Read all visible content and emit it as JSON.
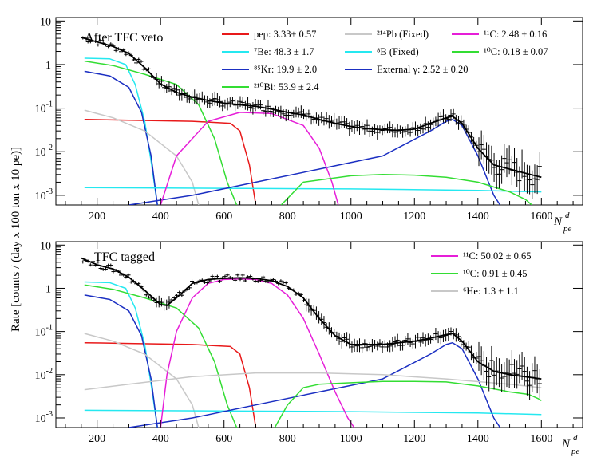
{
  "figure": {
    "ylabel": "Rate [counts / (day x 100 ton x 10 pe)]",
    "xlabel_main": "N",
    "xlabel_sup": "d",
    "xlabel_sub": "pe"
  },
  "chart_data": [
    {
      "type": "line",
      "title": "After TFC veto",
      "xlim": [
        70,
        1730
      ],
      "ylim": [
        0.0006,
        12
      ],
      "yscale": "log",
      "x_ticks": [
        200,
        400,
        600,
        800,
        1000,
        1200,
        1400,
        1600
      ],
      "y_ticks": [
        {
          "value": 0.001,
          "base": "10",
          "exp": "-3"
        },
        {
          "value": 0.01,
          "base": "10",
          "exp": "-2"
        },
        {
          "value": 0.1,
          "base": "10",
          "exp": "-1"
        },
        {
          "value": 1,
          "base": "1",
          "exp": ""
        },
        {
          "value": 10,
          "base": "10",
          "exp": ""
        }
      ],
      "legend": [
        {
          "color": "#e8191a",
          "text": "pep: 3.33± 0.57"
        },
        {
          "color": "#25e8f0",
          "text": "⁷Be: 48.3 ±  1.7"
        },
        {
          "color": "#1b2fc2",
          "text": "⁸⁵Kr: 19.9 ±  2.0"
        },
        {
          "color": "#33dd33",
          "text": "²¹⁰Bi: 53.9 ±  2.4"
        },
        {
          "color": "#c8c8c8",
          "text": "²¹⁴Pb (Fixed)"
        },
        {
          "color": "#25e8f0",
          "text": "⁸B (Fixed)"
        },
        {
          "color": "#1b2fc2",
          "text": "External γ: 2.52 ± 0.20"
        },
        {
          "color": "#e61ed8",
          "text": "¹¹C: 2.48 ±  0.16"
        },
        {
          "color": "#33dd33",
          "text": "¹⁰C: 0.18 ± 0.07"
        }
      ],
      "series": [
        {
          "name": "Total fit",
          "color": "#000000",
          "x": [
            150,
            200,
            250,
            300,
            350,
            400,
            450,
            500,
            550,
            600,
            650,
            700,
            750,
            800,
            850,
            900,
            950,
            1000,
            1050,
            1100,
            1150,
            1200,
            1250,
            1300,
            1320,
            1350,
            1400,
            1450,
            1500,
            1550,
            1600
          ],
          "y": [
            4.2,
            3.3,
            2.6,
            1.8,
            0.85,
            0.36,
            0.23,
            0.18,
            0.15,
            0.13,
            0.12,
            0.11,
            0.095,
            0.08,
            0.07,
            0.055,
            0.045,
            0.038,
            0.034,
            0.032,
            0.031,
            0.033,
            0.045,
            0.06,
            0.065,
            0.045,
            0.012,
            0.005,
            0.004,
            0.0032,
            0.0026
          ]
        },
        {
          "name": "pep",
          "color": "#e8191a",
          "x": [
            160,
            300,
            500,
            620,
            650,
            680,
            700
          ],
          "y": [
            0.055,
            0.053,
            0.05,
            0.045,
            0.03,
            0.005,
            0.0006
          ]
        },
        {
          "name": "7Be",
          "color": "#25e8f0",
          "x": [
            160,
            240,
            290,
            320,
            350,
            370,
            390
          ],
          "y": [
            1.4,
            1.35,
            1.0,
            0.35,
            0.05,
            0.006,
            0.0006
          ]
        },
        {
          "name": "85Kr",
          "color": "#1b2fc2",
          "x": [
            160,
            240,
            300,
            340,
            370,
            390
          ],
          "y": [
            0.7,
            0.55,
            0.3,
            0.08,
            0.008,
            0.0006
          ]
        },
        {
          "name": "210Bi",
          "color": "#33dd33",
          "x": [
            160,
            250,
            350,
            450,
            520,
            570,
            610,
            640
          ],
          "y": [
            1.2,
            0.95,
            0.6,
            0.35,
            0.12,
            0.02,
            0.002,
            0.0006
          ]
        },
        {
          "name": "214Pb",
          "color": "#c8c8c8",
          "x": [
            160,
            250,
            350,
            450,
            500,
            520
          ],
          "y": [
            0.09,
            0.06,
            0.03,
            0.008,
            0.002,
            0.0006
          ]
        },
        {
          "name": "8B",
          "color": "#25e8f0",
          "x": [
            160,
            600,
            1000,
            1400,
            1600
          ],
          "y": [
            0.0015,
            0.00145,
            0.0014,
            0.0013,
            0.0012
          ]
        },
        {
          "name": "External gamma",
          "color": "#1b2fc2",
          "x": [
            300,
            500,
            700,
            900,
            1100,
            1250,
            1300,
            1320,
            1350,
            1400,
            1450,
            1470
          ],
          "y": [
            0.0006,
            0.001,
            0.002,
            0.004,
            0.008,
            0.03,
            0.05,
            0.055,
            0.04,
            0.008,
            0.001,
            0.0006
          ]
        },
        {
          "name": "11C",
          "color": "#e61ed8",
          "x": [
            400,
            450,
            550,
            650,
            750,
            850,
            900,
            940,
            960
          ],
          "y": [
            0.0006,
            0.008,
            0.05,
            0.08,
            0.075,
            0.04,
            0.012,
            0.002,
            0.0006
          ]
        },
        {
          "name": "10C",
          "color": "#33dd33",
          "x": [
            780,
            850,
            1000,
            1100,
            1200,
            1300,
            1400,
            1500,
            1550,
            1570
          ],
          "y": [
            0.0006,
            0.002,
            0.0028,
            0.003,
            0.0029,
            0.0026,
            0.002,
            0.0012,
            0.0008,
            0.0006
          ]
        }
      ]
    },
    {
      "type": "line",
      "title": "TFC tagged",
      "xlim": [
        70,
        1730
      ],
      "ylim": [
        0.0006,
        12
      ],
      "yscale": "log",
      "x_ticks": [
        200,
        400,
        600,
        800,
        1000,
        1200,
        1400,
        1600
      ],
      "y_ticks": [
        {
          "value": 0.001,
          "base": "10",
          "exp": "-3"
        },
        {
          "value": 0.01,
          "base": "10",
          "exp": "-2"
        },
        {
          "value": 0.1,
          "base": "10",
          "exp": "-1"
        },
        {
          "value": 1,
          "base": "1",
          "exp": ""
        },
        {
          "value": 10,
          "base": "10",
          "exp": ""
        }
      ],
      "legend": [
        {
          "color": "#e61ed8",
          "text": "¹¹C: 50.02 ±  0.65"
        },
        {
          "color": "#33dd33",
          "text": "¹⁰C: 0.91 ± 0.45"
        },
        {
          "color": "#c8c8c8",
          "text": "⁶He: 1.3 ± 1.1"
        }
      ],
      "series": [
        {
          "name": "Total fit",
          "color": "#000000",
          "x": [
            150,
            200,
            250,
            300,
            350,
            400,
            420,
            450,
            500,
            550,
            600,
            650,
            700,
            750,
            800,
            850,
            900,
            950,
            1000,
            1050,
            1100,
            1150,
            1200,
            1250,
            1300,
            1320,
            1350,
            1400,
            1450,
            1500,
            1550,
            1600
          ],
          "y": [
            5.0,
            3.5,
            2.8,
            1.8,
            0.9,
            0.42,
            0.4,
            0.6,
            1.3,
            1.6,
            1.7,
            1.75,
            1.7,
            1.5,
            1.1,
            0.6,
            0.2,
            0.08,
            0.05,
            0.05,
            0.05,
            0.055,
            0.06,
            0.07,
            0.085,
            0.09,
            0.06,
            0.02,
            0.012,
            0.01,
            0.009,
            0.008
          ]
        },
        {
          "name": "pep",
          "color": "#e8191a",
          "x": [
            160,
            300,
            500,
            620,
            650,
            680,
            700
          ],
          "y": [
            0.055,
            0.053,
            0.05,
            0.045,
            0.03,
            0.005,
            0.0006
          ]
        },
        {
          "name": "7Be",
          "color": "#25e8f0",
          "x": [
            160,
            240,
            290,
            320,
            350,
            370,
            390
          ],
          "y": [
            1.4,
            1.35,
            1.0,
            0.35,
            0.05,
            0.006,
            0.0006
          ]
        },
        {
          "name": "85Kr",
          "color": "#1b2fc2",
          "x": [
            160,
            240,
            300,
            340,
            370,
            390
          ],
          "y": [
            0.7,
            0.55,
            0.3,
            0.08,
            0.008,
            0.0006
          ]
        },
        {
          "name": "210Bi",
          "color": "#33dd33",
          "x": [
            160,
            250,
            350,
            450,
            520,
            570,
            610,
            640
          ],
          "y": [
            1.2,
            0.95,
            0.6,
            0.35,
            0.12,
            0.02,
            0.002,
            0.0006
          ]
        },
        {
          "name": "214Pb",
          "color": "#c8c8c8",
          "x": [
            160,
            250,
            350,
            450,
            500,
            520
          ],
          "y": [
            0.09,
            0.06,
            0.03,
            0.008,
            0.002,
            0.0006
          ]
        },
        {
          "name": "8B",
          "color": "#25e8f0",
          "x": [
            160,
            600,
            1000,
            1400,
            1600
          ],
          "y": [
            0.0015,
            0.00145,
            0.0014,
            0.0013,
            0.0012
          ]
        },
        {
          "name": "External gamma",
          "color": "#1b2fc2",
          "x": [
            300,
            500,
            700,
            900,
            1100,
            1250,
            1300,
            1320,
            1350,
            1400,
            1450,
            1470
          ],
          "y": [
            0.0006,
            0.001,
            0.002,
            0.004,
            0.008,
            0.03,
            0.05,
            0.055,
            0.04,
            0.008,
            0.001,
            0.0006
          ]
        },
        {
          "name": "11C",
          "color": "#e61ed8",
          "x": [
            400,
            420,
            450,
            500,
            550,
            600,
            650,
            700,
            750,
            800,
            850,
            900,
            950,
            990,
            1010
          ],
          "y": [
            0.0006,
            0.01,
            0.1,
            0.6,
            1.3,
            1.6,
            1.65,
            1.6,
            1.3,
            0.7,
            0.2,
            0.03,
            0.004,
            0.001,
            0.0006
          ]
        },
        {
          "name": "10C",
          "color": "#33dd33",
          "x": [
            760,
            800,
            850,
            900,
            1000,
            1100,
            1200,
            1300,
            1400,
            1500,
            1560,
            1590,
            1600
          ],
          "y": [
            0.0006,
            0.002,
            0.005,
            0.006,
            0.0065,
            0.007,
            0.007,
            0.0068,
            0.0055,
            0.004,
            0.0035,
            0.0028,
            0.0025
          ]
        },
        {
          "name": "6He",
          "color": "#c8c8c8",
          "x": [
            160,
            300,
            500,
            700,
            900,
            1100,
            1300,
            1500,
            1600
          ],
          "y": [
            0.0045,
            0.006,
            0.009,
            0.011,
            0.011,
            0.01,
            0.008,
            0.006,
            0.005
          ]
        }
      ]
    }
  ]
}
